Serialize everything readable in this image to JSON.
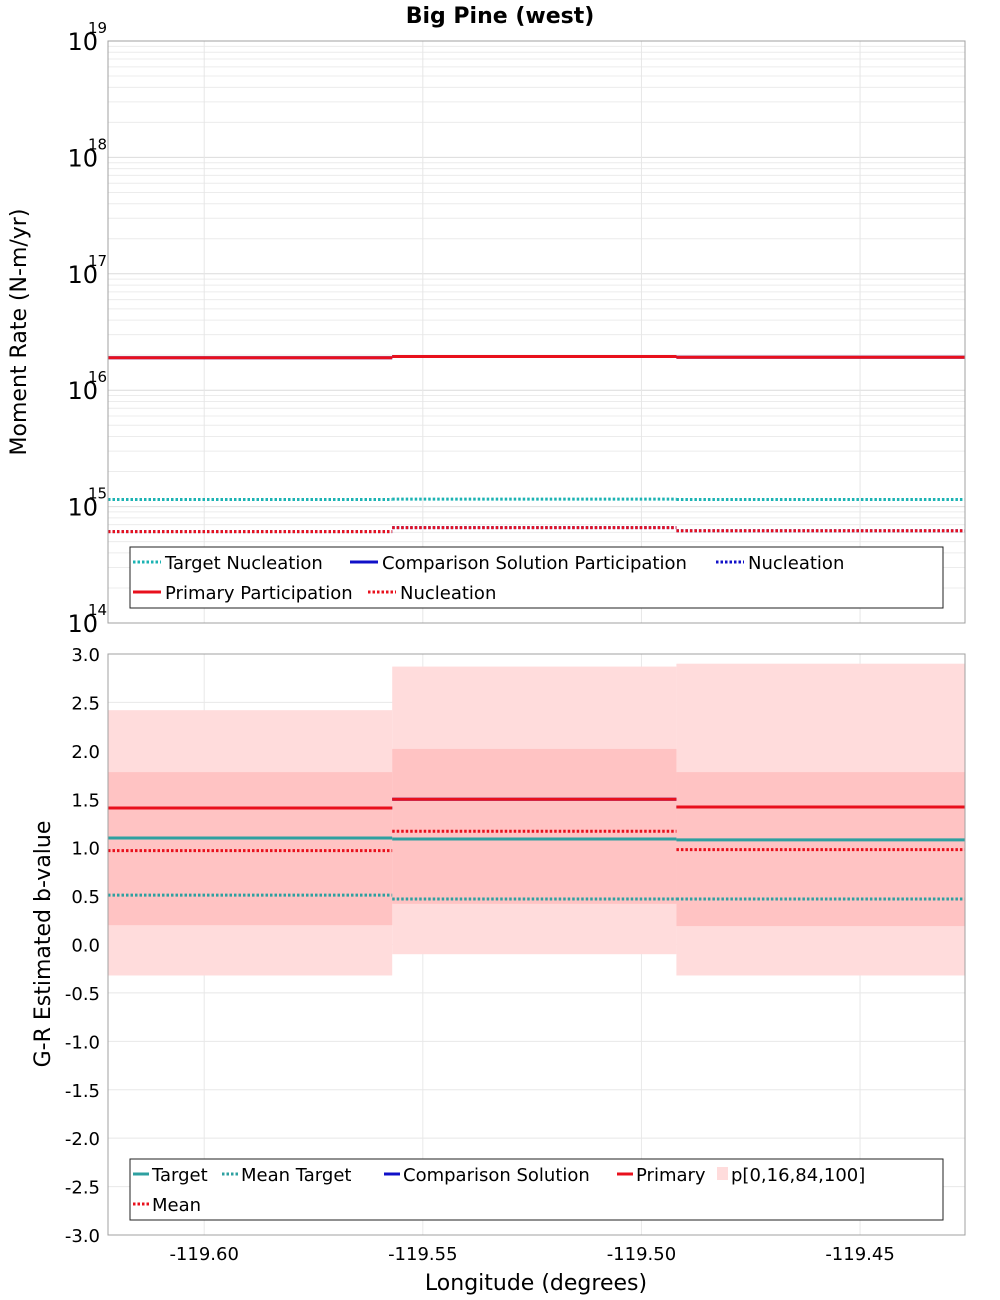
{
  "chart_data": [
    {
      "type": "line",
      "title": "Big Pine (west)",
      "ylabel": "Moment Rate (N-m/yr)",
      "xlabel": "",
      "yscale": "log",
      "ylim": [
        100000000000000.0,
        1e+19
      ],
      "xlim": [
        -119.622,
        -119.426
      ],
      "grid": true,
      "y_ticks": [
        {
          "base": "10",
          "exp": "14",
          "value": 100000000000000.0
        },
        {
          "base": "10",
          "exp": "15",
          "value": 1000000000000000.0
        },
        {
          "base": "10",
          "exp": "16",
          "value": 1e+16
        },
        {
          "base": "10",
          "exp": "17",
          "value": 1e+17
        },
        {
          "base": "10",
          "exp": "18",
          "value": 1e+18
        },
        {
          "base": "10",
          "exp": "19",
          "value": 1e+19
        }
      ],
      "x_bins": [
        [
          -119.622,
          -119.557
        ],
        [
          -119.557,
          -119.492
        ],
        [
          -119.492,
          -119.426
        ]
      ],
      "series": [
        {
          "name": "Target Nucleation",
          "color": "#1bb3b3",
          "style": "dotted",
          "values": [
            1150000000000000.0,
            1160000000000000.0,
            1150000000000000.0
          ]
        },
        {
          "name": "Comparison Solution Participation",
          "color": "#1010c8",
          "style": "solid",
          "values": [
            1.9e+16,
            1.95e+16,
            1.92e+16
          ]
        },
        {
          "name": "Nucleation",
          "color": "#1010c8",
          "style": "dotted",
          "values": [
            610000000000000.0,
            660000000000000.0,
            620000000000000.0
          ]
        },
        {
          "name": "Primary Participation",
          "color": "#e8101c",
          "style": "solid",
          "values": [
            1.9e+16,
            1.95e+16,
            1.92e+16
          ]
        },
        {
          "name": "Nucleation",
          "color": "#e8101c",
          "style": "dotted",
          "values": [
            610000000000000.0,
            660000000000000.0,
            620000000000000.0
          ]
        }
      ],
      "legend_placement": "bottom"
    },
    {
      "type": "line",
      "title": "",
      "ylabel": "G-R Estimated b-value",
      "xlabel": "Longitude (degrees)",
      "ylim": [
        -3.0,
        3.0
      ],
      "xlim": [
        -119.622,
        -119.426
      ],
      "grid": true,
      "y_ticks": [
        "-3.0",
        "-2.5",
        "-2.0",
        "-1.5",
        "-1.0",
        "-0.5",
        "0.0",
        "0.5",
        "1.0",
        "1.5",
        "2.0",
        "2.5",
        "3.0"
      ],
      "x_ticks": [
        {
          "label": "-119.60",
          "value": -119.6
        },
        {
          "label": "-119.55",
          "value": -119.55
        },
        {
          "label": "-119.50",
          "value": -119.5
        },
        {
          "label": "-119.45",
          "value": -119.45
        }
      ],
      "x_bins": [
        [
          -119.622,
          -119.557
        ],
        [
          -119.557,
          -119.492
        ],
        [
          -119.492,
          -119.426
        ]
      ],
      "bands": {
        "name": "p[0,16,84,100]",
        "outer": [
          [
            -0.32,
            2.42
          ],
          [
            -0.1,
            2.87
          ],
          [
            -0.32,
            2.9
          ]
        ],
        "inner": [
          [
            0.2,
            1.78
          ],
          [
            0.42,
            2.02
          ],
          [
            0.19,
            1.78
          ]
        ],
        "outer_color": "#ffdcdc",
        "inner_color": "#ffc3c3"
      },
      "series": [
        {
          "name": "Target",
          "color": "#2ea0a0",
          "style": "solid",
          "values": [
            1.1,
            1.09,
            1.08
          ]
        },
        {
          "name": "Mean Target",
          "color": "#2ea0a0",
          "style": "dotted",
          "values": [
            0.51,
            0.47,
            0.47
          ]
        },
        {
          "name": "Comparison Solution",
          "color": "#1010c8",
          "style": "solid",
          "values": [
            1.41,
            1.5,
            1.42
          ]
        },
        {
          "name": "Primary",
          "color": "#e8101c",
          "style": "solid",
          "values": [
            1.41,
            1.5,
            1.42
          ]
        },
        {
          "name": "Mean",
          "color": "#e8101c",
          "style": "dotted",
          "values": [
            0.97,
            1.17,
            0.98
          ]
        }
      ],
      "legend_placement": "bottom"
    }
  ]
}
